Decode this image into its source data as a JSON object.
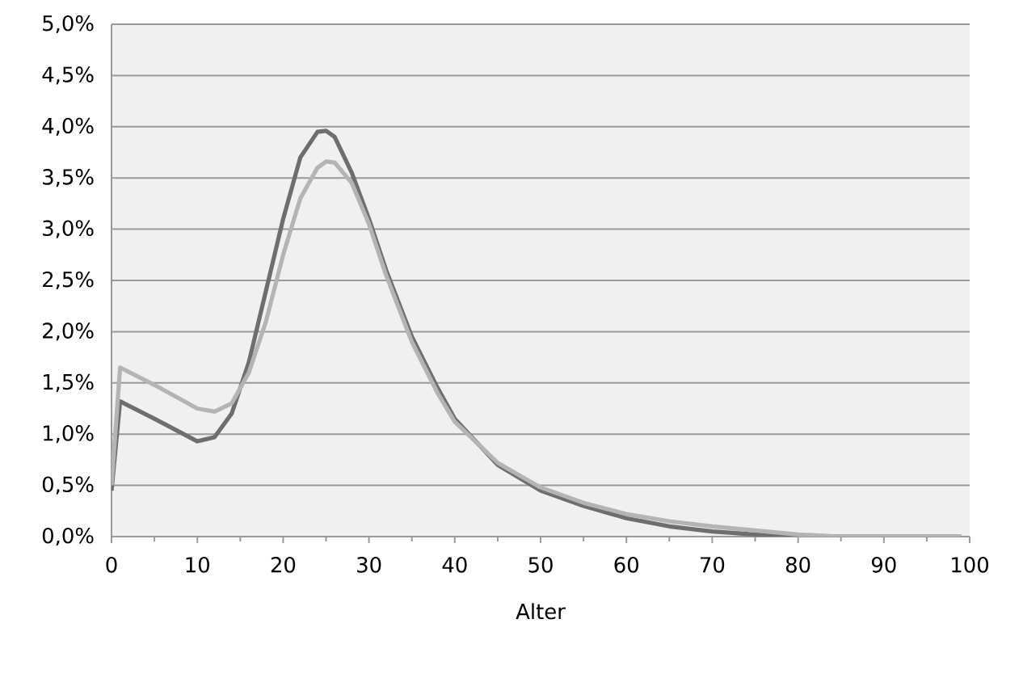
{
  "chart_data": {
    "type": "line",
    "xlabel": "Alter",
    "xlim": [
      0,
      100
    ],
    "xticks": [
      0,
      10,
      20,
      30,
      40,
      50,
      60,
      70,
      80,
      90,
      100
    ],
    "ylim": [
      0,
      5
    ],
    "yticks": [
      {
        "value": 0,
        "label": "0,0%"
      },
      {
        "value": 0.5,
        "label": "0,5%"
      },
      {
        "value": 1,
        "label": "1,0%"
      },
      {
        "value": 1.5,
        "label": "1,5%"
      },
      {
        "value": 2,
        "label": "2,0%"
      },
      {
        "value": 2.5,
        "label": "2,5%"
      },
      {
        "value": 3,
        "label": "3,0%"
      },
      {
        "value": 3.5,
        "label": "3,5%"
      },
      {
        "value": 4,
        "label": "4,0%"
      },
      {
        "value": 4.5,
        "label": "4,5%"
      },
      {
        "value": 5,
        "label": "5,0%"
      }
    ],
    "grid": "y",
    "marker": "none",
    "line_style": "solid",
    "series": [
      {
        "color": "#6e6e6e",
        "x": [
          0,
          1,
          5,
          10,
          12,
          14,
          16,
          18,
          20,
          22,
          24,
          25,
          26,
          28,
          30,
          32,
          35,
          38,
          40,
          45,
          50,
          55,
          60,
          65,
          70,
          75,
          80,
          85,
          99
        ],
        "values": [
          0.45,
          1.32,
          1.15,
          0.93,
          0.97,
          1.2,
          1.7,
          2.4,
          3.1,
          3.7,
          3.95,
          3.96,
          3.9,
          3.55,
          3.1,
          2.6,
          1.95,
          1.45,
          1.15,
          0.7,
          0.45,
          0.3,
          0.18,
          0.1,
          0.05,
          0.02,
          0.01,
          0,
          0
        ]
      },
      {
        "color": "#b4b4b4",
        "x": [
          0,
          1,
          5,
          10,
          12,
          14,
          16,
          18,
          20,
          22,
          24,
          25,
          26,
          28,
          30,
          32,
          35,
          38,
          40,
          45,
          50,
          55,
          60,
          65,
          70,
          75,
          80,
          85,
          99
        ],
        "values": [
          0.5,
          1.65,
          1.48,
          1.25,
          1.22,
          1.3,
          1.6,
          2.1,
          2.75,
          3.3,
          3.6,
          3.66,
          3.65,
          3.45,
          3.05,
          2.55,
          1.9,
          1.4,
          1.12,
          0.72,
          0.48,
          0.33,
          0.22,
          0.15,
          0.1,
          0.06,
          0.02,
          0,
          0
        ]
      }
    ]
  }
}
